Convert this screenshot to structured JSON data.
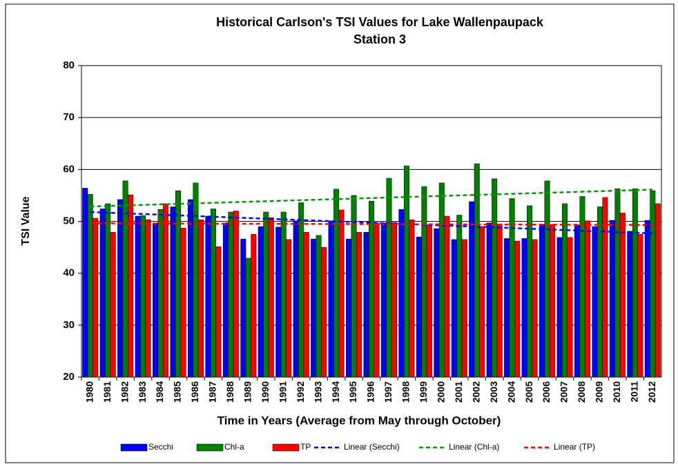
{
  "chart_data": {
    "type": "bar",
    "title": "Historical Carlson's TSI Values for Lake Wallenpaupack",
    "subtitle": "Station 3",
    "x_label": "Time in Years (Average from May through October)",
    "y_label": "TSI Value",
    "categories": [
      "1980",
      "1981",
      "1982",
      "1983",
      "1984",
      "1985",
      "1986",
      "1987",
      "1988",
      "1989",
      "1990",
      "1991",
      "1992",
      "1993",
      "1994",
      "1995",
      "1996",
      "1997",
      "1998",
      "1999",
      "2000",
      "2001",
      "2002",
      "2003",
      "2004",
      "2005",
      "2006",
      "2007",
      "2008",
      "2009",
      "2010",
      "2011",
      "2012"
    ],
    "series": [
      {
        "name": "Secchi",
        "color": "#0000ff",
        "trendline": "Linear (Secchi)",
        "trend_color": "#0000ff",
        "values": [
          56.4,
          52.4,
          54.2,
          51.0,
          49.7,
          52.8,
          54.2,
          51.0,
          49.7,
          46.6,
          49.0,
          48.9,
          50.1,
          46.6,
          50.1,
          46.6,
          47.9,
          49.7,
          52.3,
          47.0,
          48.6,
          46.5,
          53.8,
          49.7,
          46.7,
          46.7,
          49.4,
          46.9,
          49.3,
          49.0,
          50.2,
          48.1,
          50.2
        ]
      },
      {
        "name": "Chl-a",
        "color": "#008000",
        "trendline": "Linear (Chl-a)",
        "trend_color": "#009900",
        "values": [
          55.2,
          53.4,
          57.8,
          51.1,
          52.3,
          55.9,
          57.4,
          52.4,
          51.8,
          42.9,
          51.8,
          51.8,
          53.6,
          47.3,
          56.2,
          55.0,
          53.9,
          58.3,
          60.7,
          56.7,
          57.4,
          51.2,
          61.1,
          58.2,
          54.4,
          53.0,
          57.8,
          53.4,
          54.8,
          52.8,
          56.3,
          56.3,
          55.9
        ]
      },
      {
        "name": "TP",
        "color": "#ff0000",
        "trendline": "Linear (TP)",
        "trend_color": "#ff0000",
        "values": [
          50.6,
          47.9,
          55.1,
          50.3,
          53.4,
          48.7,
          50.3,
          45.1,
          52.0,
          47.5,
          50.7,
          46.5,
          47.9,
          45.0,
          52.2,
          47.9,
          49.7,
          49.8,
          50.3,
          49.3,
          51.0,
          46.5,
          49.0,
          49.4,
          46.2,
          46.5,
          49.4,
          46.9,
          50.1,
          54.6,
          51.6,
          47.5,
          53.4
        ]
      }
    ],
    "ylim": [
      20,
      80
    ],
    "yticks": [
      20,
      30,
      40,
      50,
      60,
      70,
      80
    ],
    "grid": true
  }
}
